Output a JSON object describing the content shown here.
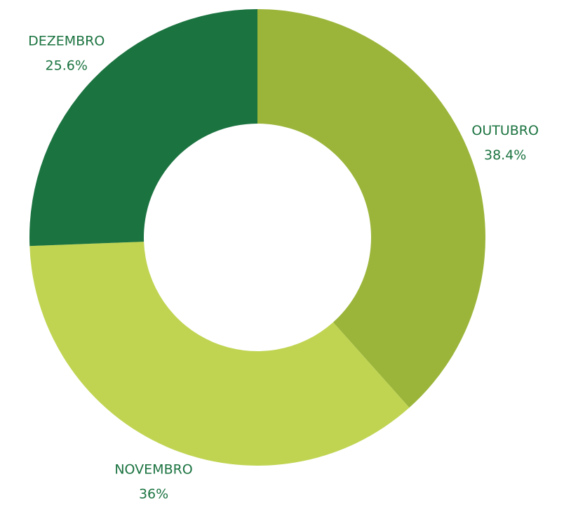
{
  "chart_data": {
    "type": "donut",
    "categories": [
      "OUTUBRO",
      "NOVEMBRO",
      "DEZEMBRO"
    ],
    "values": [
      38.4,
      36,
      25.6
    ],
    "value_labels": [
      "38.4%",
      "36%",
      "25.6%"
    ],
    "colors": [
      "#9bb53a",
      "#c0d452",
      "#1b7340"
    ]
  }
}
